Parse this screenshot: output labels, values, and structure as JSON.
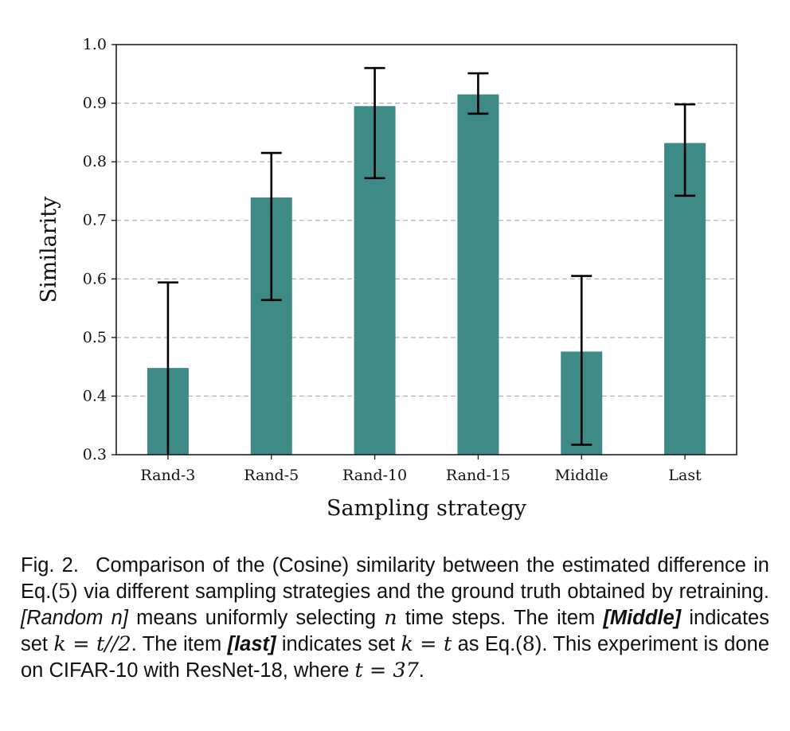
{
  "chart_data": {
    "type": "bar",
    "xlabel": "Sampling strategy",
    "ylabel": "Similarity",
    "ylim": [
      0.3,
      1.0
    ],
    "yticks": [
      "0.3",
      "0.4",
      "0.5",
      "0.6",
      "0.7",
      "0.8",
      "0.9",
      "1.0"
    ],
    "categories": [
      "Rand-3",
      "Rand-5",
      "Rand-10",
      "Rand-15",
      "Middle",
      "Last"
    ],
    "values": [
      0.448,
      0.739,
      0.895,
      0.915,
      0.476,
      0.832
    ],
    "error_low": [
      0.3,
      0.564,
      0.772,
      0.882,
      0.317,
      0.742
    ],
    "error_high": [
      0.594,
      0.815,
      0.96,
      0.951,
      0.605,
      0.898
    ],
    "bar_color": "#3e8a86",
    "grid": "horizontal dashed",
    "legend": "none"
  },
  "caption": {
    "label": "Fig. 2.",
    "s1": "Comparison of the (Cosine) similarity between the estimated difference in Eq.(",
    "eq5": "5",
    "s2": ") via different sampling strategies and the ground truth obtained by retraining. ",
    "rand_term": "[Random n]",
    "s3": " means uniformly selecting ",
    "n_var": "n",
    "s4": " time steps. The item ",
    "middle_term": "[Middle]",
    "s5": " indicates set ",
    "math_middle": "k = t//2",
    "s6": ". The item ",
    "last_term": "[last]",
    "s7": " indicates set ",
    "math_last": "k = t",
    "s8": " as Eq.(",
    "eq8": "8",
    "s9": "). This experiment is done on CIFAR-10 with ResNet-18, where ",
    "math_t": "t = 37",
    "s10": "."
  }
}
